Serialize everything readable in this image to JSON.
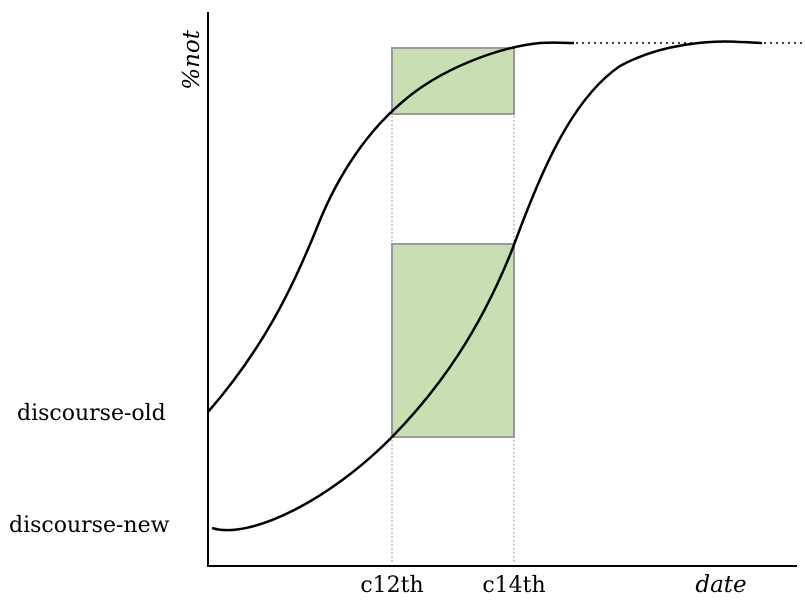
{
  "axes": {
    "y_title": "%not",
    "x_title": "date"
  },
  "labels": {
    "discourse_old": "discourse-old",
    "discourse_new": "discourse-new",
    "c12th": "c12th",
    "c14th": "c14th"
  },
  "colors": {
    "curve": "#000000",
    "box_fill": "#c9dfb1",
    "box_stroke": "#9a9a9a",
    "guide": "#8a8a8a"
  }
}
